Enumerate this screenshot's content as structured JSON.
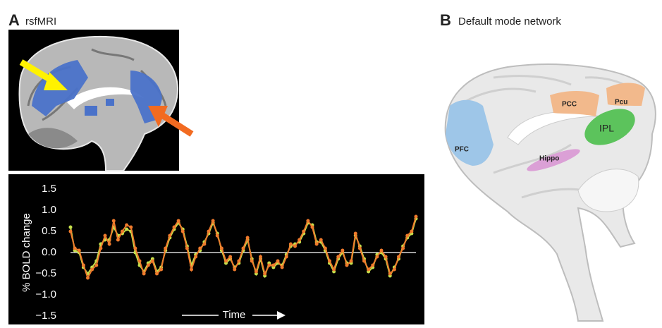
{
  "panel_a": {
    "letter": "A",
    "title": "rsfMRI"
  },
  "panel_b": {
    "letter": "B",
    "title": "Default mode network",
    "regions": [
      "PFC",
      "PCC",
      "Pcu",
      "IPL",
      "Hippo"
    ]
  },
  "chart_data": {
    "type": "line",
    "ylabel": "% BOLD change",
    "xlabel": "Time",
    "ylim": [
      -1.5,
      1.5
    ],
    "yticks": [
      1.5,
      {
        "value": 1,
        "label": "1.0"
      },
      0.5,
      {
        "value": 0,
        "label": "0.0"
      },
      {
        "value": -0.5,
        "label": "−0.5"
      },
      {
        "value": -1,
        "label": "−1.0"
      },
      {
        "value": -1.5,
        "label": "−1.5"
      }
    ],
    "series": [
      {
        "color": "#c5e04c",
        "values": [
          0.6,
          0.05,
          0.0,
          -0.35,
          -0.5,
          -0.35,
          -0.2,
          0.2,
          0.3,
          0.3,
          0.6,
          0.4,
          0.45,
          0.55,
          0.5,
          0.0,
          -0.3,
          -0.45,
          -0.25,
          -0.15,
          -0.45,
          -0.35,
          0.05,
          0.35,
          0.55,
          0.7,
          0.55,
          0.15,
          -0.3,
          -0.05,
          0.05,
          0.25,
          0.45,
          0.7,
          0.45,
          0.05,
          -0.25,
          -0.15,
          -0.35,
          -0.25,
          0.05,
          0.3,
          -0.15,
          -0.5,
          -0.15,
          -0.55,
          -0.25,
          -0.35,
          -0.25,
          -0.3,
          -0.05,
          0.15,
          0.2,
          0.25,
          0.45,
          0.7,
          0.65,
          0.25,
          0.25,
          0.05,
          -0.25,
          -0.45,
          -0.15,
          0.0,
          -0.25,
          -0.25,
          0.4,
          0.15,
          -0.15,
          -0.45,
          -0.35,
          -0.05,
          0.0,
          -0.15,
          -0.55,
          -0.35,
          -0.15,
          0.15,
          0.35,
          0.45,
          0.8
        ]
      },
      {
        "color": "#ef7a2c",
        "values": [
          0.5,
          0.1,
          0.05,
          -0.3,
          -0.6,
          -0.4,
          -0.3,
          0.1,
          0.4,
          0.2,
          0.75,
          0.3,
          0.5,
          0.65,
          0.6,
          0.1,
          -0.2,
          -0.5,
          -0.3,
          -0.2,
          -0.5,
          -0.4,
          0.1,
          0.4,
          0.6,
          0.75,
          0.5,
          0.1,
          -0.4,
          -0.1,
          0.1,
          0.2,
          0.5,
          0.75,
          0.4,
          0.1,
          -0.2,
          -0.1,
          -0.4,
          -0.2,
          0.1,
          0.35,
          -0.2,
          -0.45,
          -0.1,
          -0.5,
          -0.3,
          -0.3,
          -0.2,
          -0.35,
          -0.1,
          0.2,
          0.15,
          0.3,
          0.5,
          0.75,
          0.6,
          0.2,
          0.3,
          0.1,
          -0.2,
          -0.4,
          -0.1,
          0.05,
          -0.3,
          -0.2,
          0.45,
          0.1,
          -0.2,
          -0.4,
          -0.3,
          -0.1,
          0.05,
          -0.1,
          -0.5,
          -0.4,
          -0.1,
          0.1,
          0.4,
          0.5,
          0.85
        ]
      }
    ]
  }
}
